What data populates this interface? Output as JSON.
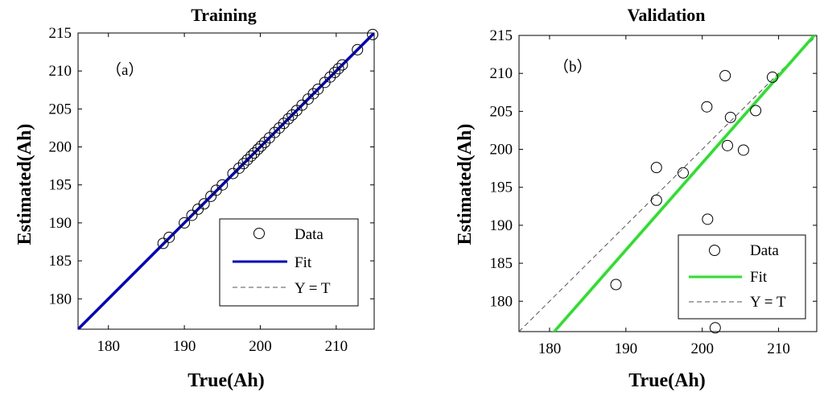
{
  "chart_data": [
    {
      "type": "scatter",
      "title": "Training",
      "panel_label": "（a）",
      "xlabel": "True(Ah)",
      "ylabel": "Estimated(Ah)",
      "xlim": [
        176,
        215
      ],
      "ylim": [
        176,
        215
      ],
      "xticks": [
        180,
        190,
        200,
        210
      ],
      "yticks": [
        180,
        185,
        190,
        195,
        200,
        205,
        210,
        215
      ],
      "legend_position": "bottom-right",
      "fit_color": "#0000d0",
      "fit": {
        "slope": 1.0,
        "intercept": 0.0
      },
      "series": [
        {
          "name": "Data",
          "kind": "markers",
          "points": [
            [
              187.2,
              187.3
            ],
            [
              188.0,
              188.1
            ],
            [
              190.0,
              190.0
            ],
            [
              191.0,
              191.0
            ],
            [
              191.8,
              191.8
            ],
            [
              192.6,
              192.5
            ],
            [
              193.5,
              193.5
            ],
            [
              194.2,
              194.3
            ],
            [
              195.0,
              195.0
            ],
            [
              196.4,
              196.5
            ],
            [
              197.2,
              197.2
            ],
            [
              197.8,
              197.8
            ],
            [
              198.3,
              198.3
            ],
            [
              198.8,
              198.8
            ],
            [
              199.2,
              199.2
            ],
            [
              199.7,
              199.7
            ],
            [
              200.1,
              200.1
            ],
            [
              200.6,
              200.6
            ],
            [
              201.2,
              201.2
            ],
            [
              201.9,
              201.9
            ],
            [
              202.5,
              202.5
            ],
            [
              203.1,
              203.1
            ],
            [
              203.7,
              203.7
            ],
            [
              204.2,
              204.2
            ],
            [
              204.8,
              204.8
            ],
            [
              205.5,
              205.5
            ],
            [
              206.3,
              206.3
            ],
            [
              207.0,
              207.0
            ],
            [
              207.6,
              207.6
            ],
            [
              208.5,
              208.5
            ],
            [
              209.2,
              209.2
            ],
            [
              209.8,
              209.8
            ],
            [
              210.3,
              210.3
            ],
            [
              210.8,
              210.8
            ],
            [
              212.8,
              212.8
            ],
            [
              214.8,
              214.8
            ]
          ]
        },
        {
          "name": "Fit",
          "kind": "line"
        },
        {
          "name": "Y = T",
          "kind": "dashed"
        }
      ]
    },
    {
      "type": "scatter",
      "title": "Validation",
      "panel_label": "（b）",
      "xlabel": "True(Ah)",
      "ylabel": "Estimated(Ah)",
      "xlim": [
        176,
        215
      ],
      "ylim": [
        176,
        215
      ],
      "xticks": [
        180,
        190,
        200,
        210
      ],
      "yticks": [
        180,
        185,
        190,
        195,
        200,
        205,
        210,
        215
      ],
      "legend_position": "bottom-right",
      "fit_color": "#22e622",
      "fit": {
        "slope": 1.145,
        "intercept": -30.8
      },
      "series": [
        {
          "name": "Data",
          "kind": "markers",
          "points": [
            [
              188.7,
              182.2
            ],
            [
              194.0,
              197.6
            ],
            [
              194.0,
              193.3
            ],
            [
              197.5,
              196.9
            ],
            [
              200.6,
              205.6
            ],
            [
              200.7,
              190.8
            ],
            [
              201.7,
              176.5
            ],
            [
              203.0,
              209.7
            ],
            [
              203.3,
              200.5
            ],
            [
              203.7,
              204.2
            ],
            [
              205.4,
              199.9
            ],
            [
              207.0,
              205.1
            ],
            [
              209.2,
              209.5
            ]
          ]
        },
        {
          "name": "Fit",
          "kind": "line"
        },
        {
          "name": "Y = T",
          "kind": "dashed"
        }
      ]
    }
  ]
}
